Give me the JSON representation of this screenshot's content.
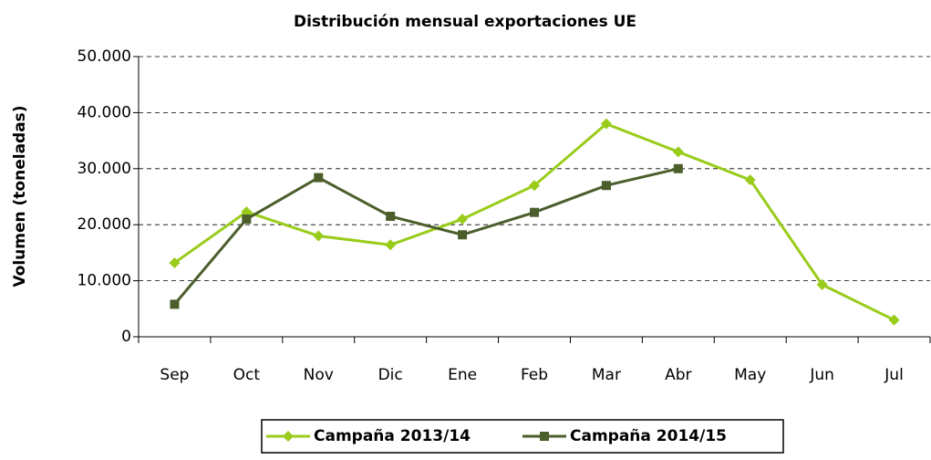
{
  "chart_data": {
    "type": "line",
    "title": "Distribución mensual exportaciones UE",
    "y_label": "Volumen (toneladas)",
    "categories": [
      "Sep",
      "Oct",
      "Nov",
      "Dic",
      "Ene",
      "Feb",
      "Mar",
      "Abr",
      "May",
      "Jun",
      "Jul"
    ],
    "series": [
      {
        "name": "Campaña 2013/14",
        "color": "#99cc1a",
        "marker": "diamond",
        "values": [
          13200,
          22300,
          18000,
          16400,
          21000,
          27000,
          38000,
          33000,
          28000,
          9300,
          3000
        ]
      },
      {
        "name": "Campaña 2014/15",
        "color": "#4b5e2b",
        "marker": "square",
        "values": [
          5800,
          21000,
          28400,
          21500,
          18200,
          22200,
          27000,
          30000,
          null,
          null,
          null
        ]
      }
    ],
    "ylim": [
      0,
      50000
    ],
    "yticks": [
      0,
      {
        "value": 10000,
        "label": "10.000"
      },
      {
        "value": 20000,
        "label": "20.000"
      },
      {
        "value": 30000,
        "label": "30.000"
      },
      {
        "value": 40000,
        "label": "40.000"
      },
      {
        "value": 50000,
        "label": "50.000"
      }
    ],
    "grid": true,
    "legend": "bottom"
  }
}
